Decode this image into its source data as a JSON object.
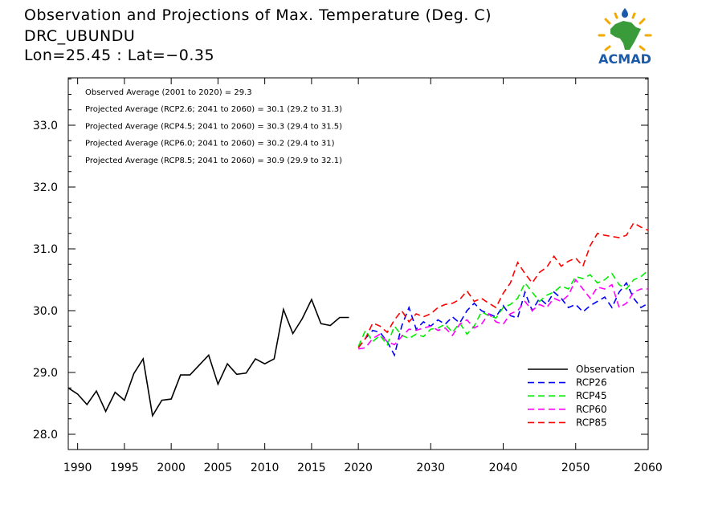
{
  "header": {
    "title": "Observation and Projections of Max. Temperature (Deg. C)",
    "region": "DRC_UBUNDU",
    "coords": "Lon=25.45 : Lat=−0.35"
  },
  "logo": {
    "text": "ACMAD",
    "icon": "africa-sun-logo"
  },
  "colors": {
    "observation": "#000000",
    "rcp26": "#0000ff",
    "rcp45": "#00ee00",
    "rcp60": "#ff00ff",
    "rcp85": "#ff0000"
  },
  "chart_data": {
    "type": "line",
    "xlim": [
      1989,
      2060
    ],
    "ylim": [
      27.8,
      33.6
    ],
    "x_ticks": [
      1990,
      1995,
      2000,
      2005,
      2010,
      2015,
      2020,
      2030,
      2040,
      2050,
      2060
    ],
    "y_ticks": [
      "28.0",
      "29.0",
      "30.0",
      "31.0",
      "32.0",
      "33.0"
    ],
    "annotations": [
      "Observed Average (2001 to 2020) = 29.3",
      "Projected Average (RCP2.6; 2041 to 2060) = 30.1 (29.2 to 31.3)",
      "Projected Average (RCP4.5; 2041 to 2060) = 30.3 (29.4 to 31.5)",
      "Projected Average (RCP6.0; 2041 to 2060) = 30.2 (29.4 to 31)",
      "Projected Average (RCP8.5; 2041 to 2060) = 30.9 (29.9 to 32.1)"
    ],
    "legend_position": "bottom-right",
    "series": [
      {
        "name": "Observation",
        "color": "#000000",
        "dash": false,
        "x": [
          1989,
          1990,
          1991,
          1992,
          1993,
          1994,
          1995,
          1996,
          1997,
          1998,
          1999,
          2000,
          2001,
          2002,
          2003,
          2004,
          2005,
          2006,
          2007,
          2008,
          2009,
          2010,
          2011,
          2012,
          2013,
          2014,
          2015,
          2016,
          2017,
          2018,
          2019
        ],
        "values": [
          28.75,
          28.65,
          28.48,
          28.7,
          28.37,
          28.68,
          28.55,
          28.98,
          29.22,
          28.3,
          28.55,
          28.57,
          28.96,
          28.96,
          29.12,
          29.28,
          28.81,
          29.14,
          28.97,
          28.99,
          29.22,
          29.14,
          29.22,
          30.02,
          29.63,
          29.87,
          30.18,
          29.79,
          29.76,
          29.89,
          29.89
        ]
      },
      {
        "name": "RCP26",
        "color": "#0000ff",
        "dash": true,
        "x": [
          2020,
          2021,
          2022,
          2023,
          2024,
          2025,
          2026,
          2027,
          2028,
          2029,
          2030,
          2031,
          2032,
          2033,
          2034,
          2035,
          2036,
          2037,
          2038,
          2039,
          2040,
          2041,
          2042,
          2043,
          2044,
          2045,
          2046,
          2047,
          2048,
          2049,
          2050,
          2051,
          2052,
          2053,
          2054,
          2055,
          2056,
          2057,
          2058,
          2059,
          2060
        ],
        "values": [
          29.4,
          29.55,
          29.68,
          29.65,
          29.5,
          29.28,
          29.75,
          30.05,
          29.7,
          29.82,
          29.75,
          29.85,
          29.78,
          29.9,
          29.8,
          30.0,
          30.12,
          30.0,
          29.95,
          29.9,
          30.08,
          29.92,
          29.88,
          30.3,
          30.0,
          30.2,
          30.1,
          30.3,
          30.2,
          30.05,
          30.1,
          29.98,
          30.08,
          30.15,
          30.22,
          30.05,
          30.3,
          30.45,
          30.2,
          30.05,
          30.12
        ]
      },
      {
        "name": "RCP45",
        "color": "#00ee00",
        "dash": true,
        "x": [
          2020,
          2021,
          2022,
          2023,
          2024,
          2025,
          2026,
          2027,
          2028,
          2029,
          2030,
          2031,
          2032,
          2033,
          2034,
          2035,
          2036,
          2037,
          2038,
          2039,
          2040,
          2041,
          2042,
          2043,
          2044,
          2045,
          2046,
          2047,
          2048,
          2049,
          2050,
          2051,
          2052,
          2053,
          2054,
          2055,
          2056,
          2057,
          2058,
          2059,
          2060
        ],
        "values": [
          29.42,
          29.68,
          29.5,
          29.6,
          29.45,
          29.75,
          29.6,
          29.55,
          29.62,
          29.58,
          29.7,
          29.72,
          29.78,
          29.65,
          29.8,
          29.62,
          29.75,
          29.98,
          29.92,
          29.88,
          30.05,
          30.1,
          30.2,
          30.45,
          30.3,
          30.15,
          30.25,
          30.3,
          30.4,
          30.35,
          30.55,
          30.52,
          30.58,
          30.45,
          30.5,
          30.6,
          30.42,
          30.35,
          30.5,
          30.55,
          30.65
        ]
      },
      {
        "name": "RCP60",
        "color": "#ff00ff",
        "dash": true,
        "x": [
          2020,
          2021,
          2022,
          2023,
          2024,
          2025,
          2026,
          2027,
          2028,
          2029,
          2030,
          2031,
          2032,
          2033,
          2034,
          2035,
          2036,
          2037,
          2038,
          2039,
          2040,
          2041,
          2042,
          2043,
          2044,
          2045,
          2046,
          2047,
          2048,
          2049,
          2050,
          2051,
          2052,
          2053,
          2054,
          2055,
          2056,
          2057,
          2058,
          2059,
          2060
        ],
        "values": [
          29.38,
          29.4,
          29.55,
          29.62,
          29.5,
          29.45,
          29.58,
          29.7,
          29.68,
          29.72,
          29.75,
          29.68,
          29.72,
          29.6,
          29.78,
          29.85,
          29.72,
          29.78,
          29.95,
          29.82,
          29.78,
          29.95,
          30.0,
          30.15,
          30.0,
          30.1,
          30.05,
          30.2,
          30.15,
          30.25,
          30.5,
          30.35,
          30.2,
          30.38,
          30.35,
          30.42,
          30.05,
          30.12,
          30.3,
          30.35,
          30.35
        ]
      },
      {
        "name": "RCP85",
        "color": "#ff0000",
        "dash": true,
        "x": [
          2020,
          2021,
          2022,
          2023,
          2024,
          2025,
          2026,
          2027,
          2028,
          2029,
          2030,
          2031,
          2032,
          2033,
          2034,
          2035,
          2036,
          2037,
          2038,
          2039,
          2040,
          2041,
          2042,
          2043,
          2044,
          2045,
          2046,
          2047,
          2048,
          2049,
          2050,
          2051,
          2052,
          2053,
          2054,
          2055,
          2056,
          2057,
          2058,
          2059,
          2060
        ],
        "values": [
          29.4,
          29.55,
          29.8,
          29.75,
          29.65,
          29.85,
          30.0,
          29.82,
          29.95,
          29.9,
          29.95,
          30.05,
          30.1,
          30.12,
          30.18,
          30.32,
          30.15,
          30.2,
          30.12,
          30.05,
          30.28,
          30.45,
          30.78,
          30.6,
          30.45,
          30.62,
          30.7,
          30.88,
          30.72,
          30.8,
          30.85,
          30.72,
          31.05,
          31.25,
          31.22,
          31.2,
          31.18,
          31.22,
          31.42,
          31.35,
          31.3
        ]
      }
    ]
  }
}
